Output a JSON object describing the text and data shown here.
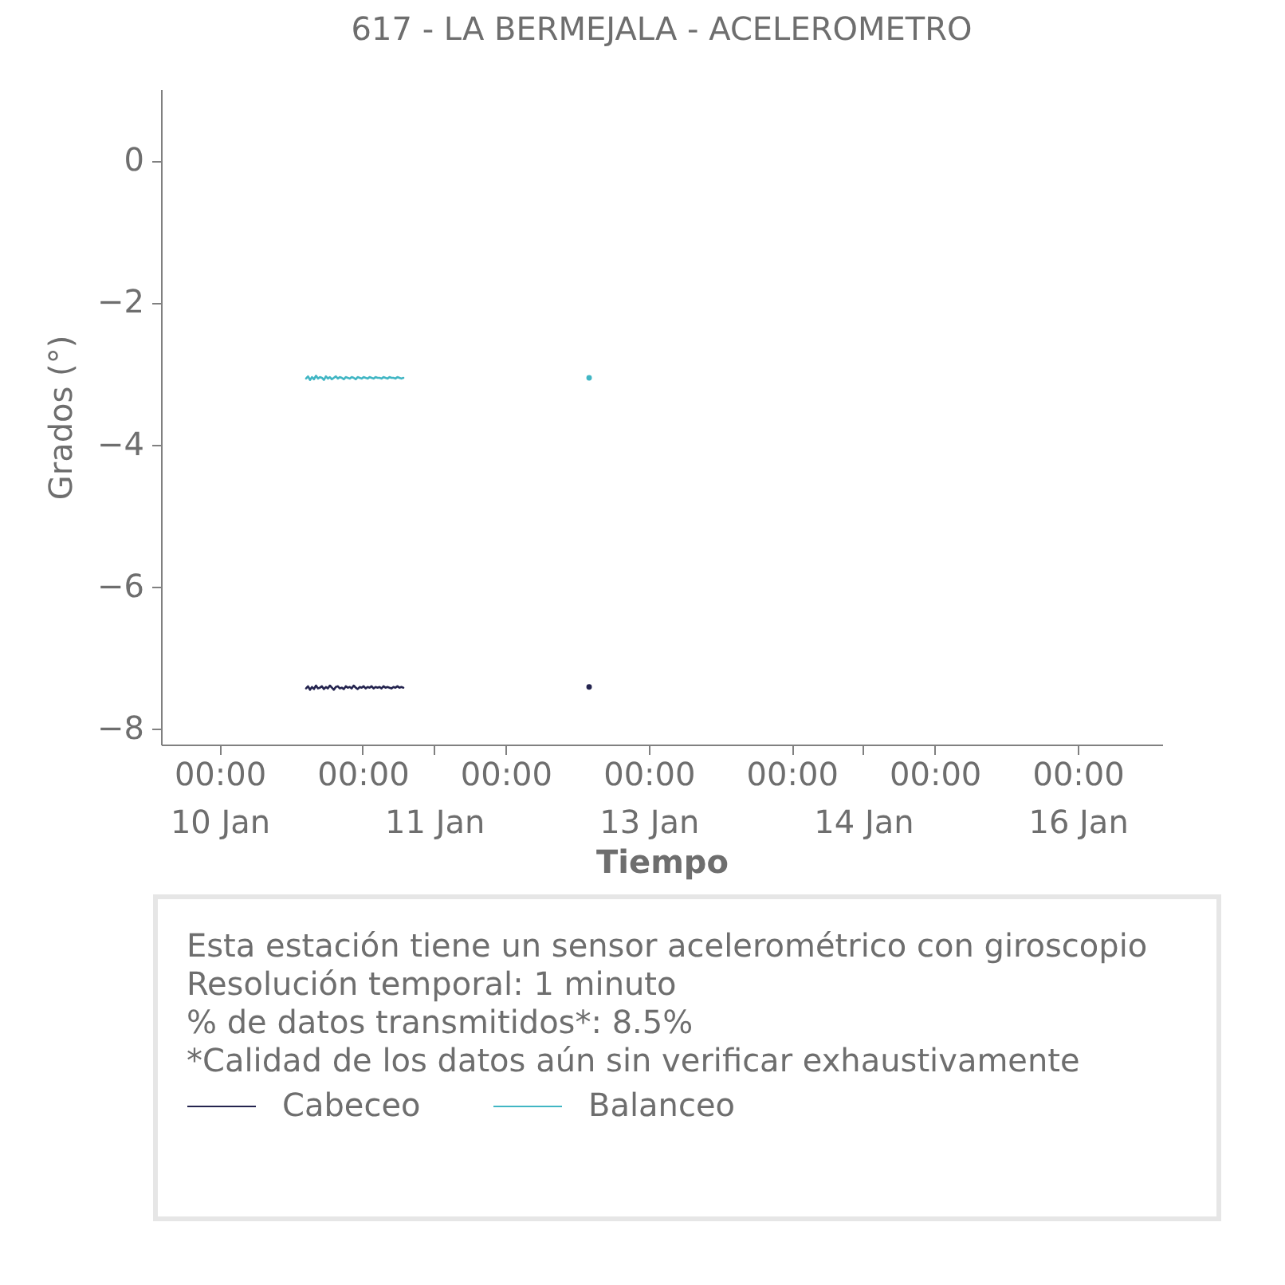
{
  "chart_data": {
    "type": "line",
    "title": "617 - LA BERMEJALA - ACELEROMETRO",
    "xlabel": "Tiempo",
    "ylabel": "Grados (°)",
    "annotations": [
      "Esta estación tiene un sensor acelerométrico con giroscopio",
      "Resolución temporal: 1 minuto",
      "% de datos transmitidos*: 8.5%",
      "*Calidad de los datos aún sin verificar exhaustivamente"
    ],
    "x": [
      "--01-10T14:30",
      "--01-10T14:50",
      "--01-10T15:10",
      "--01-10T15:30",
      "--01-10T15:50",
      "--01-10T16:10",
      "--01-10T16:30",
      "--01-10T16:50",
      "--01-10T17:10",
      "--01-10T17:30",
      "--01-10T17:50",
      "--01-10T18:10",
      "--01-10T18:30",
      "--01-10T18:50",
      "--01-10T19:10",
      "--01-10T19:30",
      "--01-10T19:50",
      "--01-10T20:10",
      "--01-10T20:30",
      "--01-10T20:50",
      "--01-10T21:10",
      "--01-10T21:30",
      "--01-10T21:50",
      "--01-10T22:10",
      "--01-10T22:30",
      "--01-10T22:50",
      "--01-10T23:10",
      "--01-10T23:30",
      "--01-10T23:50",
      "--01-11T00:10",
      "--01-11T00:30",
      "--01-11T00:50",
      "--01-11T01:10",
      "--01-11T01:30",
      "--01-11T01:50",
      "--01-11T02:10",
      "--01-11T02:30",
      "--01-11T02:50",
      "--01-11T03:10",
      "--01-11T03:30",
      "--01-11T03:50",
      "--01-11T04:10",
      "--01-11T04:30",
      "--01-11T04:50",
      "--01-11T05:10",
      "--01-11T05:30",
      "--01-11T05:50",
      "--01-11T06:10",
      "--01-11T06:30",
      "--01-11T06:50"
    ],
    "series": [
      {
        "name": "Cabeceo",
        "color": "#24244f",
        "values": [
          -7.43,
          -7.4,
          -7.45,
          -7.41,
          -7.44,
          -7.39,
          -7.43,
          -7.42,
          -7.4,
          -7.44,
          -7.41,
          -7.43,
          -7.39,
          -7.42,
          -7.45,
          -7.41,
          -7.4,
          -7.43,
          -7.42,
          -7.44,
          -7.4,
          -7.42,
          -7.41,
          -7.43,
          -7.39,
          -7.42,
          -7.44,
          -7.41,
          -7.42,
          -7.4,
          -7.43,
          -7.41,
          -7.42,
          -7.4,
          -7.43,
          -7.41,
          -7.42,
          -7.41,
          -7.43,
          -7.4,
          -7.42,
          -7.41,
          -7.42,
          -7.43,
          -7.41,
          -7.42,
          -7.4,
          -7.42,
          -7.41,
          -7.42
        ]
      },
      {
        "name": "Balanceo",
        "color": "#41b6c4",
        "values": [
          -3.07,
          -3.04,
          -3.09,
          -3.05,
          -3.08,
          -3.03,
          -3.07,
          -3.05,
          -3.06,
          -3.09,
          -3.04,
          -3.07,
          -3.05,
          -3.08,
          -3.06,
          -3.04,
          -3.07,
          -3.05,
          -3.06,
          -3.08,
          -3.05,
          -3.06,
          -3.07,
          -3.05,
          -3.06,
          -3.08,
          -3.05,
          -3.06,
          -3.07,
          -3.05,
          -3.06,
          -3.07,
          -3.05,
          -3.06,
          -3.07,
          -3.05,
          -3.06,
          -3.06,
          -3.07,
          -3.05,
          -3.06,
          -3.07,
          -3.05,
          -3.06,
          -3.06,
          -3.07,
          -3.05,
          -3.06,
          -3.07,
          -3.06
        ]
      },
      {
        "type": "scatter",
        "color": "#24244f",
        "x": [
          "--01-12T14:00"
        ],
        "values": [
          -7.41
        ]
      },
      {
        "type": "scatter",
        "color": "#41b6c4",
        "x": [
          "--01-12T14:00"
        ],
        "values": [
          -3.06
        ]
      }
    ],
    "xlim": [
      "--01-09T14:10",
      "--01-16T14:10"
    ],
    "xticks": [
      {
        "value": "--01-10T00:00",
        "label": "00:00"
      },
      {
        "value": "--01-11T00:00",
        "label": "00:00"
      },
      {
        "value": "--01-12T00:00",
        "label": "00:00"
      },
      {
        "value": "--01-13T00:00",
        "label": "00:00"
      },
      {
        "value": "--01-14T00:00",
        "label": "00:00"
      },
      {
        "value": "--01-15T00:00",
        "label": "00:00"
      },
      {
        "value": "--01-16T00:00",
        "label": "00:00"
      }
    ],
    "x2lim": [
      "--01-09T14:10",
      "--01-16T14:10"
    ],
    "x2ticks": [
      {
        "value": "--01-10T00:00",
        "label": "10 Jan"
      },
      {
        "value": "--01-11T12:00",
        "label": "11 Jan"
      },
      {
        "value": "--01-13T00:00",
        "label": "13 Jan"
      },
      {
        "value": "--01-14T12:00",
        "label": "14 Jan"
      },
      {
        "value": "--01-16T00:00",
        "label": "16 Jan"
      }
    ],
    "ylim": [
      -8.22,
      1.0
    ],
    "yticks": [
      -8,
      -6,
      -4,
      -2,
      0
    ],
    "legend": "bottom"
  }
}
